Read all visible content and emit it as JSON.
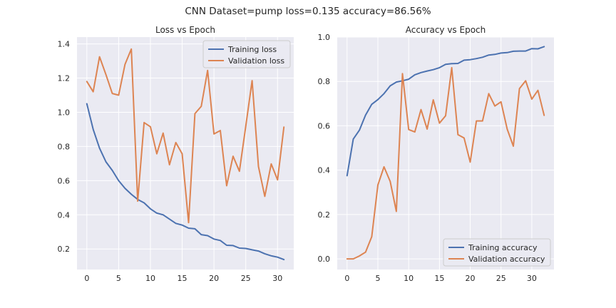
{
  "suptitle": "CNN Dataset=pump loss=0.135 accuracy=86.56%",
  "colors": {
    "training": "#4c72b0",
    "validation": "#dd8452",
    "panel_bg": "#eaeaf2",
    "grid": "#ffffff"
  },
  "chart_data": [
    {
      "type": "line",
      "title": "Loss vs Epoch",
      "xlabel": "",
      "ylabel": "",
      "xlim": [
        -1.55,
        32.55
      ],
      "ylim": [
        0.08,
        1.44
      ],
      "xticks": [
        0,
        5,
        10,
        15,
        20,
        25,
        30
      ],
      "yticks": [
        0.2,
        0.4,
        0.6,
        0.8,
        1.0,
        1.2,
        1.4
      ],
      "ytick_labels": [
        "0.2",
        "0.4",
        "0.6",
        "0.8",
        "1.0",
        "1.2",
        "1.4"
      ],
      "grid": true,
      "legend_position": "top-right",
      "series": [
        {
          "name": "Training loss",
          "color": "#4c72b0",
          "x": [
            0,
            1,
            2,
            3,
            4,
            5,
            6,
            7,
            8,
            9,
            10,
            11,
            12,
            13,
            14,
            15,
            16,
            17,
            18,
            19,
            20,
            21,
            22,
            23,
            24,
            25,
            26,
            27,
            28,
            29,
            30,
            31
          ],
          "y": [
            1.05,
            0.9,
            0.79,
            0.71,
            0.66,
            0.6,
            0.555,
            0.52,
            0.49,
            0.47,
            0.435,
            0.41,
            0.4,
            0.375,
            0.35,
            0.34,
            0.322,
            0.318,
            0.284,
            0.278,
            0.258,
            0.25,
            0.222,
            0.22,
            0.205,
            0.203,
            0.195,
            0.188,
            0.172,
            0.16,
            0.152,
            0.138
          ]
        },
        {
          "name": "Validation loss",
          "color": "#dd8452",
          "x": [
            0,
            1,
            2,
            3,
            4,
            5,
            6,
            7,
            8,
            9,
            10,
            11,
            12,
            13,
            14,
            15,
            16,
            17,
            18,
            19,
            20,
            21,
            22,
            23,
            24,
            25,
            26,
            27,
            28,
            29,
            30,
            31
          ],
          "y": [
            1.18,
            1.12,
            1.325,
            1.22,
            1.11,
            1.1,
            1.28,
            1.37,
            0.48,
            0.94,
            0.915,
            0.757,
            0.878,
            0.693,
            0.823,
            0.757,
            0.354,
            0.992,
            1.035,
            1.245,
            0.873,
            0.893,
            0.57,
            0.743,
            0.655,
            0.918,
            1.185,
            0.683,
            0.508,
            0.698,
            0.605,
            0.913
          ]
        }
      ]
    },
    {
      "type": "line",
      "title": "Accuracy vs Epoch",
      "xlabel": "",
      "ylabel": "",
      "xlim": [
        -1.6,
        33.6
      ],
      "ylim": [
        -0.048,
        1.0
      ],
      "xticks": [
        0,
        5,
        10,
        15,
        20,
        25,
        30
      ],
      "yticks": [
        0.0,
        0.2,
        0.4,
        0.6,
        0.8,
        1.0
      ],
      "ytick_labels": [
        "0.0",
        "0.2",
        "0.4",
        "0.6",
        "0.8",
        "1.0"
      ],
      "grid": true,
      "legend_position": "bottom-right",
      "series": [
        {
          "name": "Training accuracy",
          "color": "#4c72b0",
          "x": [
            0,
            1,
            2,
            3,
            4,
            5,
            6,
            7,
            8,
            9,
            10,
            11,
            12,
            13,
            14,
            15,
            16,
            17,
            18,
            19,
            20,
            21,
            22,
            23,
            24,
            25,
            26,
            27,
            28,
            29,
            30,
            31,
            32
          ],
          "y": [
            0.375,
            0.54,
            0.58,
            0.648,
            0.697,
            0.718,
            0.745,
            0.78,
            0.797,
            0.803,
            0.81,
            0.83,
            0.84,
            0.847,
            0.853,
            0.862,
            0.877,
            0.88,
            0.881,
            0.896,
            0.898,
            0.903,
            0.909,
            0.919,
            0.922,
            0.928,
            0.93,
            0.936,
            0.937,
            0.937,
            0.948,
            0.947,
            0.957
          ]
        },
        {
          "name": "Validation accuracy",
          "color": "#dd8452",
          "x": [
            0,
            1,
            2,
            3,
            4,
            5,
            6,
            7,
            8,
            9,
            10,
            11,
            12,
            13,
            14,
            15,
            16,
            17,
            18,
            19,
            20,
            21,
            22,
            23,
            24,
            25,
            26,
            27,
            28,
            29,
            30,
            31,
            32
          ],
          "y": [
            0.0,
            0.0,
            0.013,
            0.03,
            0.1,
            0.333,
            0.415,
            0.349,
            0.214,
            0.835,
            0.583,
            0.572,
            0.673,
            0.585,
            0.717,
            0.612,
            0.645,
            0.862,
            0.56,
            0.545,
            0.436,
            0.622,
            0.622,
            0.745,
            0.689,
            0.708,
            0.585,
            0.508,
            0.768,
            0.803,
            0.72,
            0.76,
            0.647
          ]
        }
      ]
    }
  ]
}
